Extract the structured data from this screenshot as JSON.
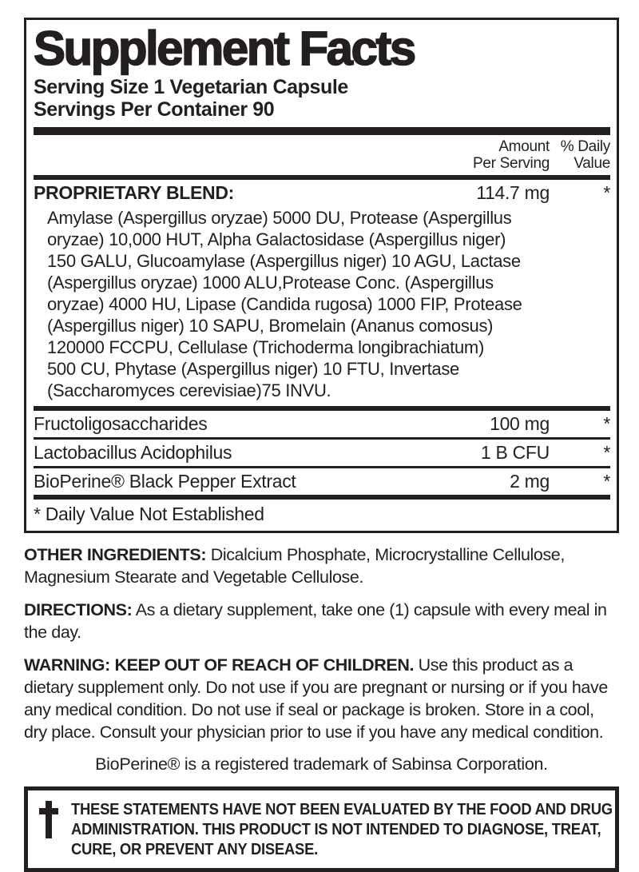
{
  "panel": {
    "title": "Supplement Facts",
    "serving_size": "Serving Size 1 Vegetarian Capsule",
    "servings_per_container": "Servings Per Container 90",
    "columns": {
      "amount_line1": "Amount",
      "amount_line2": "Per Serving",
      "dv_line1": "% Daily",
      "dv_line2": "Value"
    },
    "blend": {
      "name": "PROPRIETARY BLEND:",
      "amount": "114.7 mg",
      "dv": "*",
      "lines": [
        "Amylase (Aspergillus oryzae) 5000 DU, Protease (Aspergillus",
        "oryzae) 10,000 HUT, Alpha Galactosidase (Aspergillus niger)",
        "150 GALU, Glucoamylase (Aspergillus niger) 10 AGU, Lactase",
        "(Aspergillus oryzae) 1000 ALU,Protease Conc. (Aspergillus",
        "oryzae) 4000 HU, Lipase (Candida rugosa) 1000 FIP, Protease",
        "(Aspergillus niger) 10 SAPU, Bromelain (Ananus comosus)",
        "120000 FCCPU, Cellulase (Trichoderma longibrachiatum)",
        "500 CU, Phytase (Aspergillus niger) 10 FTU, Invertase",
        "(Saccharomyces cerevisiae)75 INVU."
      ]
    },
    "rows": [
      {
        "name": "Fructoligosaccharides",
        "amount": "100 mg",
        "dv": "*"
      },
      {
        "name": "Lactobacillus Acidophilus",
        "amount": "1 B CFU",
        "dv": "*"
      },
      {
        "name": "BioPerine® Black Pepper Extract",
        "amount": "2 mg",
        "dv": "*"
      }
    ],
    "footnote": "* Daily Value Not Established"
  },
  "sections": {
    "other_ingredients_label": "OTHER INGREDIENTS:",
    "other_ingredients_text": " Dicalcium Phosphate, Microcrystalline Cellulose, Magnesium Stearate and Vegetable Cellulose.",
    "directions_label": "DIRECTIONS:",
    "directions_text": " As a dietary supplement, take one (1) capsule with every meal in the day.",
    "warning_label": "WARNING: KEEP OUT OF REACH OF CHILDREN.",
    "warning_text": " Use this product as a dietary supplement only. Do not use if you are pregnant or nursing or if you have any medical condition. Do not use if seal or package is broken. Store in a cool, dry place. Consult your physician prior to use if you have any medical condition.",
    "trademark": "BioPerine® is a registered trademark of Sabinsa Corporation."
  },
  "disclaimer": {
    "icon": "cross-dagger-icon",
    "lines": [
      "THESE STATEMENTS HAVE NOT BEEN EVALUATED BY THE FOOD AND DRUG",
      "ADMINISTRATION. THIS PRODUCT IS NOT INTENDED TO DIAGNOSE, TREAT,",
      "CURE, OR PREVENT ANY DISEASE."
    ]
  },
  "colors": {
    "ink": "#231f20",
    "background": "#ffffff"
  }
}
